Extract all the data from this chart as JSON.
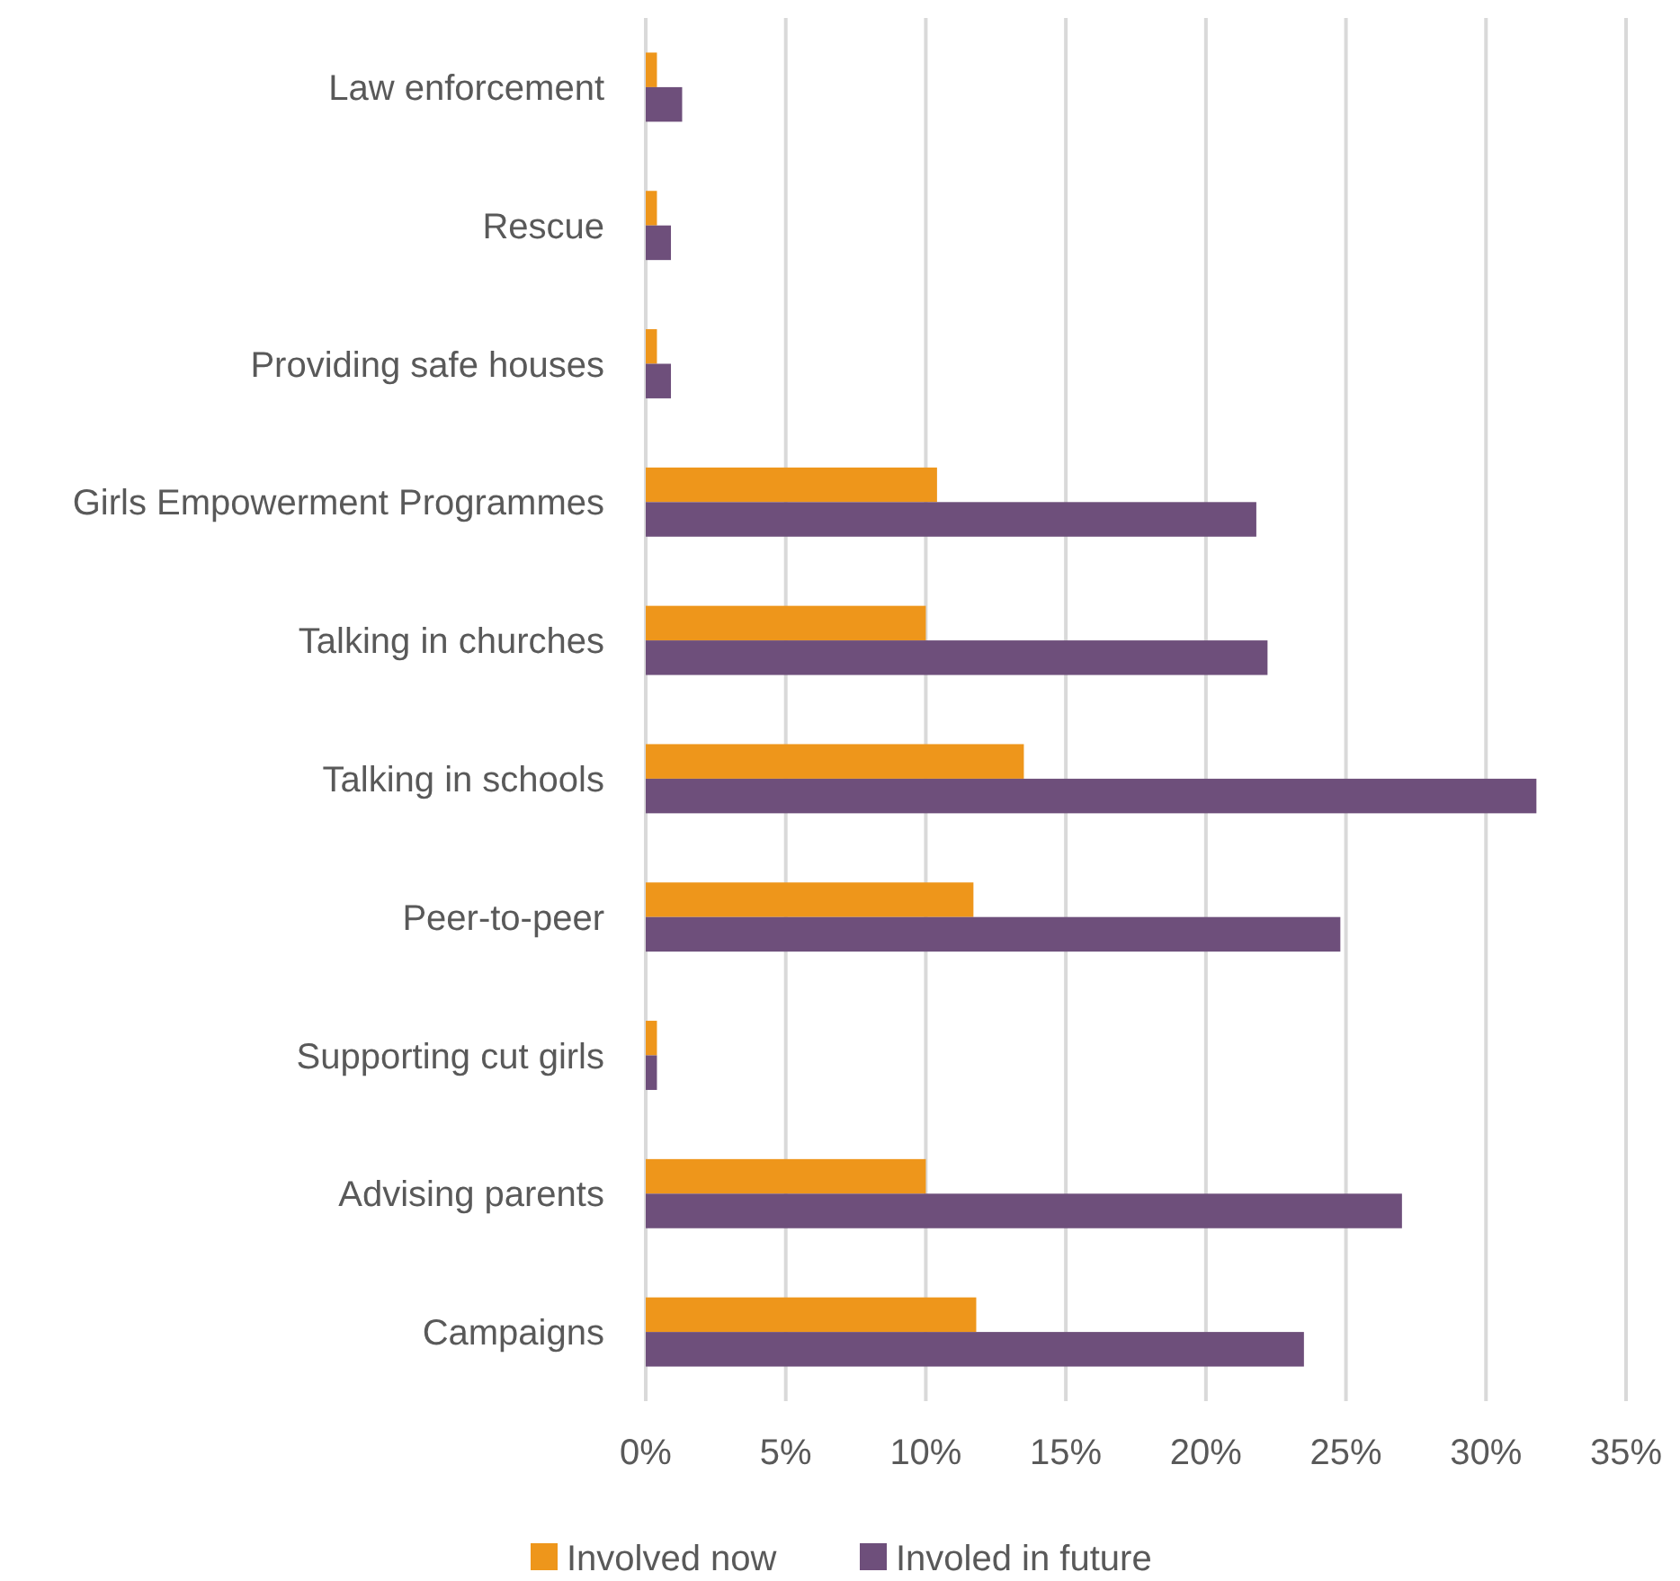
{
  "chart_data": {
    "type": "bar",
    "orientation": "horizontal",
    "categories": [
      "Law enforcement",
      "Rescue",
      "Providing safe houses",
      "Girls Empowerment Programmes",
      "Talking in churches",
      "Talking in schools",
      "Peer-to-peer",
      "Supporting cut girls",
      "Advising parents",
      "Campaigns"
    ],
    "series": [
      {
        "name": "Involved now",
        "color": "#ee961b",
        "values": [
          0.4,
          0.4,
          0.4,
          10.4,
          10.0,
          13.5,
          11.7,
          0.4,
          10.0,
          11.8
        ]
      },
      {
        "name": "Involed in future",
        "color": "#6e4f7b",
        "values": [
          1.3,
          0.9,
          0.9,
          21.8,
          22.2,
          31.8,
          24.8,
          0.4,
          27.0,
          23.5
        ]
      }
    ],
    "xlim": [
      0,
      35
    ],
    "xticks": [
      {
        "value": 0,
        "label": "0%"
      },
      {
        "value": 5,
        "label": "5%"
      },
      {
        "value": 10,
        "label": "10%"
      },
      {
        "value": 15,
        "label": "15%"
      },
      {
        "value": 20,
        "label": "20%"
      },
      {
        "value": 25,
        "label": "25%"
      },
      {
        "value": 30,
        "label": "30%"
      },
      {
        "value": 35,
        "label": "35%"
      }
    ],
    "grid": "x",
    "legend": "bottom"
  }
}
